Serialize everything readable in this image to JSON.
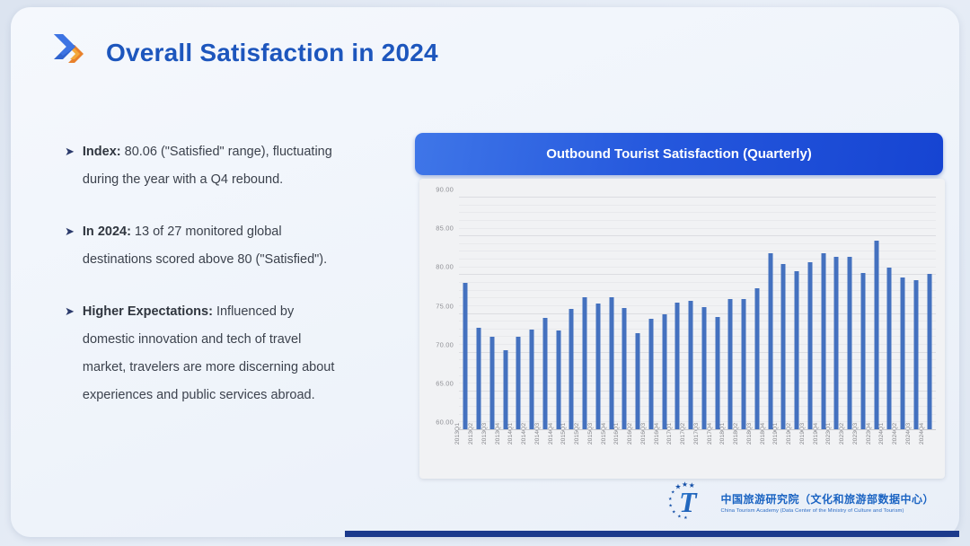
{
  "slide": {
    "title": "Overall Satisfaction in 2024",
    "bullets": [
      {
        "lead": "Index:",
        "rest": " 80.06 (\"Satisfied\" range), fluctuating\nduring the year with a Q4 rebound."
      },
      {
        "lead": "In 2024:",
        "rest": " 13 of 27 monitored global\ndestinations scored above 80 (\"Satisfied\")."
      },
      {
        "lead": "Higher Expectations:",
        "rest": " Influenced by\ndomestic innovation and tech of travel\nmarket, travelers are more discerning about\nexperiences and public services abroad."
      }
    ],
    "footer": {
      "org_cn": "中国旅游研究院（文化和旅游部数据中心）",
      "org_en": "China Tourism Academy (Data Center of the Ministry of Culture and Tourism)"
    }
  },
  "chart": {
    "header": "Outbound Tourist Satisfaction (Quarterly)"
  },
  "chart_data": {
    "type": "bar",
    "title": "Outbound Tourist Satisfaction (Quarterly)",
    "categories": [
      "2013Q1",
      "2013Q2",
      "2013Q3",
      "2013Q4",
      "2014Q1",
      "2014Q2",
      "2014Q3",
      "2014Q4",
      "2015Q1",
      "2015Q2",
      "2015Q3",
      "2015Q4",
      "2016Q1",
      "2016Q2",
      "2016Q3",
      "2016Q4",
      "2017Q1",
      "2017Q2",
      "2017Q3",
      "2017Q4",
      "2018Q1",
      "2018Q2",
      "2018Q3",
      "2018Q4",
      "2019Q1",
      "2019Q2",
      "2019Q3",
      "2019Q4",
      "2023Q1",
      "2023Q2",
      "2023Q3",
      "2023Q4",
      "2024Q1",
      "2024Q2",
      "2024Q3",
      "2024Q4"
    ],
    "values": [
      79.0,
      73.2,
      72.1,
      70.3,
      72.0,
      73.0,
      74.5,
      72.9,
      75.6,
      77.1,
      76.3,
      77.2,
      75.8,
      72.5,
      74.4,
      75.0,
      76.5,
      76.7,
      75.9,
      74.6,
      76.9,
      76.9,
      78.3,
      82.8,
      81.4,
      80.5,
      81.7,
      82.8,
      82.4,
      82.3,
      80.3,
      84.4,
      81.0,
      79.7,
      79.3,
      80.1
    ],
    "xlabel": "",
    "ylabel": "",
    "ylim": [
      60,
      90
    ],
    "y_tick_step": 5,
    "y_tick_labels": [
      "60.00",
      "65.00",
      "70.00",
      "75.00",
      "80.00",
      "85.00",
      "90.00"
    ],
    "grid": true,
    "legend": false,
    "bar_color": "#4471bf"
  },
  "colors": {
    "title_blue": "#1d56bd",
    "header_gradient_start": "#3f76e8",
    "header_gradient_end": "#1644d2",
    "bar_blue": "#4471bf",
    "footer_navy": "#1b3a8c",
    "logo_blue": "#1a63c2"
  }
}
